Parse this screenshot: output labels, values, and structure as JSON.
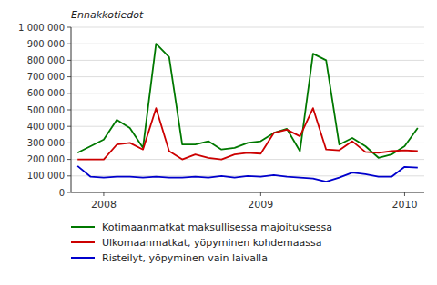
{
  "chart_data": {
    "type": "line",
    "annotations": [
      "Ennakkotiedot"
    ],
    "categories": [
      null,
      null,
      "2008",
      null,
      null,
      null,
      null,
      null,
      null,
      null,
      null,
      null,
      null,
      null,
      "2009",
      null,
      null,
      null,
      null,
      null,
      null,
      null,
      null,
      null,
      null,
      "2010",
      null
    ],
    "series": [
      {
        "name": "Kotimaanmatkat maksullisessa majoituksessa",
        "color": "#007800",
        "values": [
          240000,
          280000,
          320000,
          440000,
          390000,
          270000,
          900000,
          820000,
          290000,
          290000,
          310000,
          260000,
          270000,
          300000,
          310000,
          360000,
          385000,
          250000,
          840000,
          800000,
          290000,
          330000,
          280000,
          210000,
          230000,
          280000,
          390000
        ]
      },
      {
        "name": "Ulkomaanmatkat, yöpyminen kohdemaassa",
        "color": "#cc0000",
        "values": [
          200000,
          200000,
          200000,
          290000,
          300000,
          260000,
          510000,
          250000,
          200000,
          230000,
          210000,
          200000,
          230000,
          240000,
          235000,
          360000,
          380000,
          340000,
          510000,
          260000,
          255000,
          310000,
          245000,
          240000,
          250000,
          255000,
          250000
        ]
      },
      {
        "name": "Risteilyt, yöpyminen vain laivalla",
        "color": "#0000cc",
        "values": [
          160000,
          95000,
          90000,
          95000,
          95000,
          90000,
          95000,
          90000,
          90000,
          95000,
          90000,
          100000,
          90000,
          100000,
          95000,
          105000,
          95000,
          90000,
          85000,
          65000,
          90000,
          120000,
          110000,
          95000,
          95000,
          155000,
          150000
        ]
      }
    ],
    "ylim": [
      0,
      1000000
    ],
    "yticks": [
      0,
      {
        "value": 100000,
        "label": "100 000"
      },
      {
        "value": 200000,
        "label": "200 000"
      },
      {
        "value": 300000,
        "label": "300 000"
      },
      {
        "value": 400000,
        "label": "400 000"
      },
      {
        "value": 500000,
        "label": "500 000"
      },
      {
        "value": 600000,
        "label": "600 000"
      },
      {
        "value": 700000,
        "label": "700 000"
      },
      {
        "value": 800000,
        "label": "800 000"
      },
      {
        "value": 900000,
        "label": "900 000"
      },
      {
        "value": 1000000,
        "label": "1 000 000"
      }
    ],
    "grid": true,
    "legend": "bottom"
  }
}
